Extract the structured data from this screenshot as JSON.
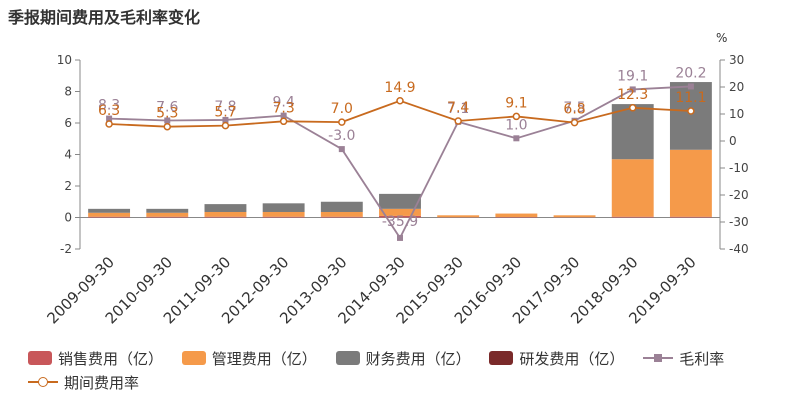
{
  "title": "季报期间费用及毛利率变化",
  "y2_unit": "%",
  "colors": {
    "sales": "#c8575a",
    "admin": "#f59a4a",
    "finance": "#7b7b7b",
    "rd": "#7a2a2a",
    "gross_margin": "#9b8196",
    "period_expense_rate": "#c86a1e"
  },
  "legend": {
    "sales": "销售费用（亿）",
    "admin": "管理费用（亿）",
    "finance": "财务费用（亿）",
    "rd": "研发费用（亿）",
    "gross_margin": "毛利率",
    "period_expense_rate": "期间费用率"
  },
  "chart_data": {
    "type": "bar",
    "categories": [
      "2009-09-30",
      "2010-09-30",
      "2011-09-30",
      "2012-09-30",
      "2013-09-30",
      "2014-09-30",
      "2015-09-30",
      "2016-09-30",
      "2017-09-30",
      "2018-09-30",
      "2019-09-30"
    ],
    "y_left_ticks": [
      -2,
      0,
      2,
      4,
      6,
      8,
      10
    ],
    "y_right_ticks": [
      -40,
      -30,
      -20,
      -10,
      0,
      10,
      20,
      30
    ],
    "ylim_left": [
      -2,
      10
    ],
    "ylim_right": [
      -40,
      30
    ],
    "stacked": true,
    "series": [
      {
        "name": "销售费用（亿）",
        "key": "sales",
        "values": [
          0.05,
          0.05,
          0.05,
          0.05,
          0.05,
          0.1,
          0.02,
          0.03,
          0.02,
          0.05,
          0.05
        ]
      },
      {
        "name": "管理费用（亿）",
        "key": "admin",
        "values": [
          0.25,
          0.25,
          0.3,
          0.3,
          0.3,
          0.45,
          0.12,
          0.22,
          0.12,
          3.65,
          4.25
        ]
      },
      {
        "name": "财务费用（亿）",
        "key": "finance",
        "values": [
          0.25,
          0.25,
          0.5,
          0.55,
          0.65,
          0.95,
          0.0,
          0.0,
          0.0,
          3.5,
          4.3
        ]
      },
      {
        "name": "研发费用（亿）",
        "key": "rd",
        "values": [
          0,
          0,
          0,
          0,
          0,
          0,
          0,
          0,
          0,
          0,
          0
        ]
      }
    ],
    "line_series": [
      {
        "name": "毛利率",
        "key": "gross_margin",
        "axis": "right",
        "marker": "square",
        "values": [
          8.3,
          7.6,
          7.8,
          9.4,
          -3.0,
          -35.9,
          7.1,
          1.0,
          7.5,
          19.1,
          20.2
        ],
        "labels": [
          "8.3",
          "7.6",
          "7.8",
          "9.4",
          "-3.0",
          "-35.9",
          "7.1",
          "1.0",
          "7.5",
          "19.1",
          "20.2"
        ]
      },
      {
        "name": "期间费用率",
        "key": "period_expense_rate",
        "axis": "right",
        "marker": "circle",
        "values": [
          6.3,
          5.3,
          5.7,
          7.3,
          7.0,
          14.9,
          7.4,
          9.1,
          6.8,
          12.3,
          11.1
        ],
        "labels": [
          "6.3",
          "5.3",
          "5.7",
          "7.3",
          "7.0",
          "14.9",
          "7.4",
          "9.1",
          "6.8",
          "12.3",
          "11.1"
        ]
      }
    ]
  }
}
